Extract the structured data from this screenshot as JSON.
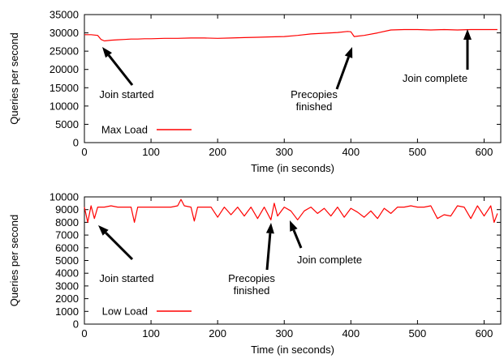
{
  "chart_data": [
    {
      "type": "line",
      "xlabel": "Time (in seconds)",
      "ylabel": "Queries per second",
      "xlim": [
        0,
        625
      ],
      "ylim": [
        0,
        35000
      ],
      "xticks": [
        0,
        100,
        200,
        300,
        400,
        500,
        600
      ],
      "yticks": [
        0,
        5000,
        10000,
        15000,
        20000,
        25000,
        30000,
        35000
      ],
      "legend_position": "bottom-left",
      "series": [
        {
          "name": "Max Load",
          "color": "#ff0000",
          "x": [
            0,
            10,
            20,
            25,
            30,
            40,
            50,
            60,
            70,
            80,
            90,
            100,
            120,
            140,
            160,
            180,
            200,
            220,
            240,
            260,
            280,
            300,
            320,
            340,
            360,
            380,
            395,
            400,
            405,
            410,
            420,
            440,
            460,
            480,
            500,
            520,
            540,
            560,
            580,
            600,
            620
          ],
          "y": [
            29500,
            29500,
            29300,
            28200,
            27800,
            28000,
            28100,
            28200,
            28300,
            28300,
            28400,
            28400,
            28500,
            28500,
            28600,
            28600,
            28500,
            28600,
            28700,
            28800,
            28900,
            29000,
            29300,
            29700,
            29900,
            30100,
            30400,
            30300,
            29000,
            29100,
            29300,
            30000,
            30800,
            30900,
            30900,
            30800,
            30900,
            30800,
            30900,
            30900,
            30900
          ]
        }
      ],
      "annotations": [
        {
          "text": "Join started",
          "lines": [
            "Join started"
          ]
        },
        {
          "text": "Precopies finished",
          "lines": [
            "Precopies",
            "finished"
          ]
        },
        {
          "text": "Join complete",
          "lines": [
            "Join complete"
          ]
        }
      ]
    },
    {
      "type": "line",
      "xlabel": "Time (in seconds)",
      "ylabel": "Queries per second",
      "xlim": [
        0,
        625
      ],
      "ylim": [
        0,
        10000
      ],
      "xticks": [
        0,
        100,
        200,
        300,
        400,
        500,
        600
      ],
      "yticks": [
        0,
        1000,
        2000,
        3000,
        4000,
        5000,
        6000,
        7000,
        8000,
        9000,
        10000
      ],
      "legend_position": "bottom-left",
      "series": [
        {
          "name": "Low Load",
          "color": "#ff0000",
          "x": [
            0,
            5,
            10,
            15,
            20,
            30,
            40,
            50,
            60,
            70,
            75,
            80,
            90,
            100,
            110,
            120,
            130,
            140,
            145,
            150,
            160,
            165,
            170,
            180,
            190,
            200,
            210,
            220,
            230,
            240,
            250,
            260,
            270,
            280,
            285,
            290,
            300,
            310,
            320,
            330,
            340,
            350,
            360,
            370,
            380,
            390,
            400,
            410,
            420,
            430,
            440,
            450,
            460,
            470,
            480,
            490,
            500,
            510,
            520,
            530,
            540,
            550,
            560,
            570,
            580,
            590,
            600,
            610,
            615,
            620
          ],
          "y": [
            9200,
            8000,
            9300,
            8300,
            9200,
            9200,
            9300,
            9200,
            9200,
            9200,
            8000,
            9200,
            9200,
            9200,
            9200,
            9200,
            9200,
            9300,
            9800,
            9300,
            9200,
            8100,
            9200,
            9200,
            9200,
            8400,
            9200,
            8600,
            9200,
            8500,
            9200,
            8300,
            9200,
            8200,
            9500,
            8500,
            9200,
            8900,
            8200,
            8900,
            9200,
            8700,
            9100,
            8500,
            9200,
            8400,
            9100,
            8800,
            8400,
            8900,
            8300,
            9100,
            8700,
            9200,
            9200,
            9300,
            9200,
            9200,
            9300,
            8300,
            8600,
            8500,
            9300,
            9200,
            8300,
            9300,
            8500,
            9300,
            8000,
            8700
          ]
        }
      ],
      "annotations": [
        {
          "text": "Join started",
          "lines": [
            "Join started"
          ]
        },
        {
          "text": "Precopies finished",
          "lines": [
            "Precopies",
            "finished"
          ]
        },
        {
          "text": "Join complete",
          "lines": [
            "Join complete"
          ]
        }
      ]
    }
  ]
}
